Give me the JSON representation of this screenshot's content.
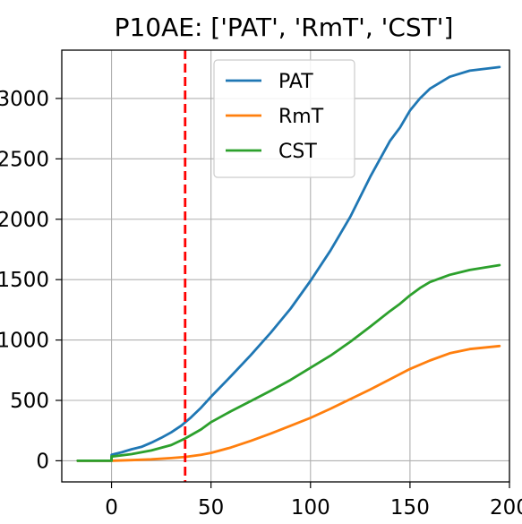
{
  "chart_data": {
    "type": "line",
    "title": "P10AE: ['PAT', 'RmT', 'CST']",
    "xlabel": "",
    "ylabel": "",
    "xlim": [
      -25,
      200
    ],
    "ylim": [
      -175,
      3400
    ],
    "x_ticks": [
      0,
      50,
      100,
      150,
      200
    ],
    "y_ticks": [
      0,
      500,
      1000,
      1500,
      2000,
      2500,
      3000
    ],
    "x_tick_labels": [
      "0",
      "50",
      "100",
      "150",
      "200"
    ],
    "y_tick_labels": [
      "0",
      "500",
      "1000",
      "1500",
      "2000",
      "2500",
      "3000"
    ],
    "grid": true,
    "legend_position": "upper center",
    "vline": {
      "x": 37,
      "color": "#ff0000",
      "style": "dashed"
    },
    "series": [
      {
        "name": "PAT",
        "color": "#1f77b4",
        "points": [
          [
            -17,
            0
          ],
          [
            0,
            0
          ],
          [
            0,
            50
          ],
          [
            5,
            70
          ],
          [
            10,
            95
          ],
          [
            15,
            115
          ],
          [
            20,
            150
          ],
          [
            25,
            190
          ],
          [
            30,
            235
          ],
          [
            35,
            290
          ],
          [
            40,
            360
          ],
          [
            45,
            440
          ],
          [
            50,
            530
          ],
          [
            60,
            700
          ],
          [
            70,
            875
          ],
          [
            80,
            1060
          ],
          [
            90,
            1260
          ],
          [
            100,
            1490
          ],
          [
            110,
            1740
          ],
          [
            120,
            2020
          ],
          [
            130,
            2350
          ],
          [
            140,
            2650
          ],
          [
            145,
            2760
          ],
          [
            150,
            2900
          ],
          [
            155,
            3000
          ],
          [
            160,
            3080
          ],
          [
            170,
            3180
          ],
          [
            180,
            3230
          ],
          [
            195,
            3260
          ]
        ]
      },
      {
        "name": "RmT",
        "color": "#ff7f0e",
        "points": [
          [
            -17,
            0
          ],
          [
            0,
            0
          ],
          [
            10,
            5
          ],
          [
            20,
            12
          ],
          [
            30,
            22
          ],
          [
            37,
            32
          ],
          [
            45,
            50
          ],
          [
            50,
            65
          ],
          [
            60,
            110
          ],
          [
            70,
            165
          ],
          [
            80,
            225
          ],
          [
            90,
            290
          ],
          [
            100,
            355
          ],
          [
            110,
            430
          ],
          [
            120,
            510
          ],
          [
            130,
            590
          ],
          [
            140,
            675
          ],
          [
            150,
            760
          ],
          [
            160,
            830
          ],
          [
            170,
            890
          ],
          [
            180,
            925
          ],
          [
            195,
            950
          ]
        ]
      },
      {
        "name": "CST",
        "color": "#2ca02c",
        "points": [
          [
            -17,
            0
          ],
          [
            0,
            0
          ],
          [
            0,
            35
          ],
          [
            10,
            55
          ],
          [
            20,
            85
          ],
          [
            30,
            130
          ],
          [
            37,
            185
          ],
          [
            45,
            260
          ],
          [
            50,
            320
          ],
          [
            60,
            410
          ],
          [
            70,
            495
          ],
          [
            80,
            580
          ],
          [
            90,
            670
          ],
          [
            100,
            770
          ],
          [
            110,
            870
          ],
          [
            120,
            985
          ],
          [
            130,
            1110
          ],
          [
            140,
            1240
          ],
          [
            145,
            1300
          ],
          [
            150,
            1370
          ],
          [
            155,
            1430
          ],
          [
            160,
            1480
          ],
          [
            170,
            1540
          ],
          [
            180,
            1580
          ],
          [
            195,
            1620
          ]
        ]
      }
    ]
  }
}
